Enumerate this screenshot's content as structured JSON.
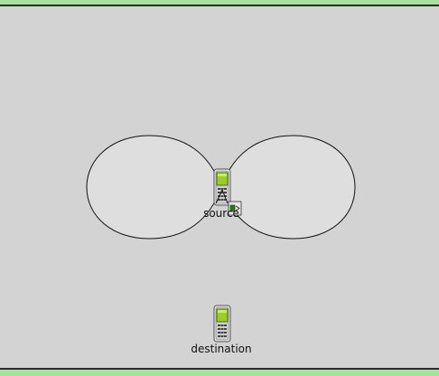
{
  "colors": {
    "background": "#d3d3d3",
    "frame": "#a8e0a0",
    "antenna_fill": "#dedede",
    "phone_screen": "#9ccc28"
  },
  "nodes": {
    "source": {
      "label": "source",
      "icon": "cellphone-icon",
      "badge_icon": "queue-packet-icon"
    },
    "destination": {
      "label": "destination",
      "icon": "cellphone-icon"
    }
  },
  "antenna_pattern": {
    "shape": "dipole-figure-eight"
  }
}
